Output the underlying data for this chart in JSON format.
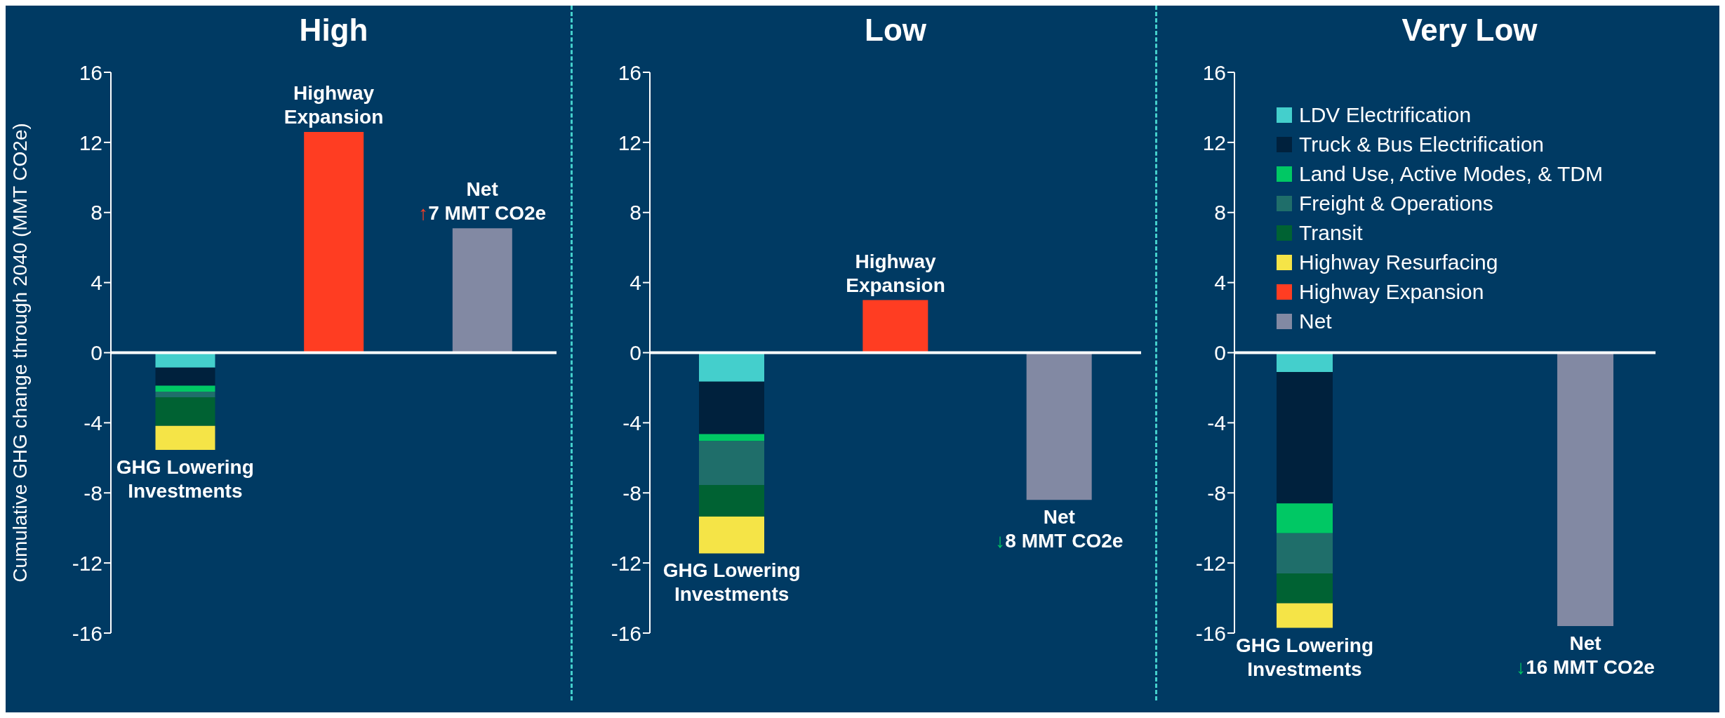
{
  "chart_data": [
    {
      "type": "bar",
      "title": "High",
      "ylabel": "Cumulative GHG change through 2040 (MMT CO2e)",
      "categories": [
        "GHG Lowering Investments",
        "Highway Expansion",
        "Net"
      ],
      "stacked": true,
      "ylim": [
        -16,
        16
      ],
      "yticks": [
        -16,
        -12,
        -8,
        -4,
        0,
        4,
        8,
        12,
        16
      ],
      "legend": false,
      "annotations": [
        {
          "text": "↑7 MMT CO2e",
          "x": "Net",
          "y": 7.1
        }
      ],
      "series": [
        {
          "color": "#44cfcc",
          "values": [
            -0.85,
            null,
            null
          ]
        },
        {
          "color": "#00213d",
          "values": [
            -1.03,
            null,
            null
          ]
        },
        {
          "color": "#00c864",
          "values": [
            -0.34,
            null,
            null
          ]
        },
        {
          "color": "#1f6e6a",
          "values": [
            -0.32,
            null,
            null
          ]
        },
        {
          "color": "#006233",
          "values": [
            -1.64,
            null,
            null
          ]
        },
        {
          "color": "#f5e447",
          "values": [
            -1.37,
            null,
            null
          ]
        },
        {
          "color": "#ff3d22",
          "values": [
            null,
            12.6,
            null
          ]
        },
        {
          "color": "#8289a3",
          "values": [
            null,
            null,
            7.1
          ]
        }
      ]
    },
    {
      "type": "bar",
      "title": "Low",
      "categories": [
        "GHG Lowering Investments",
        "Highway Expansion",
        "Net"
      ],
      "stacked": true,
      "ylim": [
        -16,
        16
      ],
      "yticks": [
        -16,
        -12,
        -8,
        -4,
        0,
        4,
        8,
        12,
        16
      ],
      "legend": false,
      "annotations": [
        {
          "text": "↓8 MMT CO2e",
          "x": "Net",
          "y": -8.4
        }
      ],
      "series": [
        {
          "color": "#44cfcc",
          "values": [
            -1.65,
            null,
            null
          ]
        },
        {
          "color": "#00213d",
          "values": [
            -3.0,
            null,
            null
          ]
        },
        {
          "color": "#00c864",
          "values": [
            -0.4,
            null,
            null
          ]
        },
        {
          "color": "#1f6e6a",
          "values": [
            -2.5,
            null,
            null
          ]
        },
        {
          "color": "#006233",
          "values": [
            -1.8,
            null,
            null
          ]
        },
        {
          "color": "#f5e447",
          "values": [
            -2.1,
            null,
            null
          ]
        },
        {
          "color": "#ff3d22",
          "values": [
            null,
            3.0,
            null
          ]
        },
        {
          "color": "#8289a3",
          "values": [
            null,
            null,
            -8.4
          ]
        }
      ]
    },
    {
      "type": "bar",
      "title": "Very Low",
      "categories": [
        "GHG Lowering Investments",
        null,
        "Net"
      ],
      "stacked": true,
      "ylim": [
        -16,
        16
      ],
      "yticks": [
        -16,
        -12,
        -8,
        -4,
        0,
        4,
        8,
        12,
        16
      ],
      "legend": "top left",
      "annotations": [
        {
          "text": "↓16 MMT CO2e",
          "x": "Net",
          "y": -15.6
        }
      ],
      "series": [
        {
          "name": "LDV Electrification",
          "color": "#44cfcc",
          "values": [
            -1.1,
            null,
            null
          ]
        },
        {
          "name": "Truck & Bus Electrification",
          "color": "#00213d",
          "values": [
            -7.5,
            null,
            null
          ]
        },
        {
          "name": "Land Use, Active Modes, & TDM",
          "color": "#00c864",
          "values": [
            -1.7,
            null,
            null
          ]
        },
        {
          "name": "Freight & Operations",
          "color": "#1f6e6a",
          "values": [
            -2.3,
            null,
            null
          ]
        },
        {
          "name": "Transit",
          "color": "#006233",
          "values": [
            -1.7,
            null,
            null
          ]
        },
        {
          "name": "Highway Resurfacing",
          "color": "#f5e447",
          "values": [
            -1.4,
            null,
            null
          ]
        },
        {
          "name": "Highway Expansion",
          "color": "#ff3d22",
          "values": [
            null,
            null,
            null
          ]
        },
        {
          "name": "Net",
          "color": "#8289a3",
          "values": [
            null,
            null,
            -15.6
          ]
        }
      ]
    }
  ]
}
